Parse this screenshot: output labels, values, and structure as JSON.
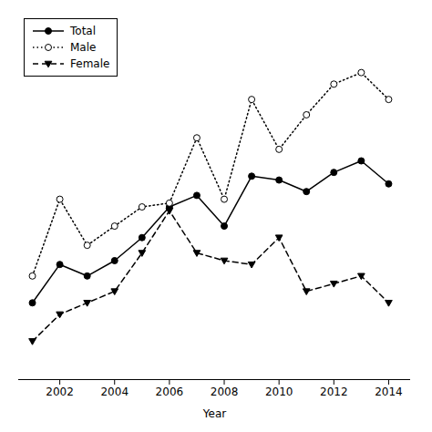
{
  "chart_data": {
    "type": "line",
    "xlabel": "Year",
    "x": [
      2001,
      2002,
      2003,
      2004,
      2005,
      2006,
      2007,
      2008,
      2009,
      2010,
      2011,
      2012,
      2013,
      2014
    ],
    "series": [
      {
        "name": "Total",
        "color": "#000000",
        "marker": "circle",
        "line_style": "solid",
        "values": [
          3.5,
          4.5,
          4.2,
          4.6,
          5.2,
          6.0,
          6.3,
          5.5,
          6.8,
          6.7,
          6.4,
          6.9,
          7.2,
          6.6
        ]
      },
      {
        "name": "Male",
        "color": "#000000",
        "marker": "circle-open",
        "line_style": "dotted",
        "values": [
          4.2,
          6.2,
          5.0,
          5.5,
          6.0,
          6.1,
          7.8,
          6.2,
          8.8,
          7.5,
          8.4,
          9.2,
          9.5,
          8.8
        ]
      },
      {
        "name": "Female",
        "color": "#000000",
        "marker": "triangle-down",
        "line_style": "dashed",
        "values": [
          2.5,
          3.2,
          3.5,
          3.8,
          4.8,
          5.9,
          4.8,
          4.6,
          4.5,
          5.2,
          3.8,
          4.0,
          4.2,
          3.5
        ]
      }
    ],
    "xlim": [
      2000.5,
      2014.8
    ],
    "xticks": [
      2002,
      2004,
      2006,
      2008,
      2010,
      2012,
      2014
    ],
    "ylim": [
      1.5,
      11
    ],
    "tick_labels": "x",
    "legend": "upper left"
  }
}
